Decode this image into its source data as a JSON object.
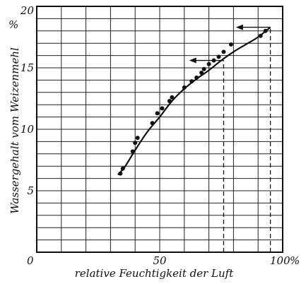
{
  "chart_data": {
    "type": "scatter",
    "xlabel": "relative Feuchtigkeit der Luft",
    "ylabel": "Wassergehalt vom Weizenmehl",
    "x_unit": "%",
    "y_unit": "%",
    "xlim": [
      0,
      100
    ],
    "ylim": [
      0,
      20
    ],
    "grid": true,
    "x_ticks": [
      {
        "value": 0,
        "label": "0"
      },
      {
        "value": 50,
        "label": "50"
      },
      {
        "value": 100,
        "label": "100"
      }
    ],
    "y_ticks": [
      {
        "value": 5,
        "label": "5"
      },
      {
        "value": 10,
        "label": "10"
      },
      {
        "value": 15,
        "label": "15"
      },
      {
        "value": 20,
        "label": "20"
      }
    ],
    "series": [
      {
        "marker": "point",
        "points": [
          [
            34,
            6.4
          ],
          [
            35,
            6.8
          ],
          [
            39,
            8.2
          ],
          [
            40,
            8.9
          ],
          [
            41,
            9.3
          ],
          [
            47,
            10.5
          ],
          [
            49,
            11.3
          ],
          [
            51,
            11.7
          ],
          [
            54,
            12.3
          ],
          [
            55,
            12.6
          ],
          [
            60,
            13.4
          ],
          [
            63,
            13.9
          ],
          [
            65,
            14.2
          ],
          [
            67,
            14.6
          ],
          [
            68,
            14.9
          ],
          [
            70,
            15.3
          ],
          [
            72,
            15.6
          ],
          [
            74,
            15.9
          ],
          [
            76,
            16.3
          ],
          [
            79,
            16.9
          ],
          [
            91,
            17.6
          ],
          [
            93,
            18.0
          ]
        ]
      },
      {
        "marker": "line",
        "points": [
          [
            33,
            6.3
          ],
          [
            36,
            7.0
          ],
          [
            40,
            8.3
          ],
          [
            45,
            9.8
          ],
          [
            50,
            11.0
          ],
          [
            55,
            12.3
          ],
          [
            60,
            13.3
          ],
          [
            65,
            14.1
          ],
          [
            70,
            14.8
          ],
          [
            75,
            15.6
          ],
          [
            80,
            16.3
          ],
          [
            85,
            16.9
          ],
          [
            90,
            17.5
          ],
          [
            95,
            18.3
          ]
        ]
      }
    ],
    "annotations": [
      {
        "type": "dashed-vline",
        "x": 76,
        "y_from": 0,
        "y_to": 15.6
      },
      {
        "type": "dashed-vline",
        "x": 95,
        "y_from": 0,
        "y_to": 18.3
      },
      {
        "type": "arrow",
        "from": [
          76,
          15.6
        ],
        "to": [
          62,
          15.6
        ]
      },
      {
        "type": "arrow",
        "from": [
          95,
          18.3
        ],
        "to": [
          81,
          18.3
        ]
      }
    ],
    "colors": {
      "ink": "#111111",
      "background": "#ffffff"
    }
  }
}
